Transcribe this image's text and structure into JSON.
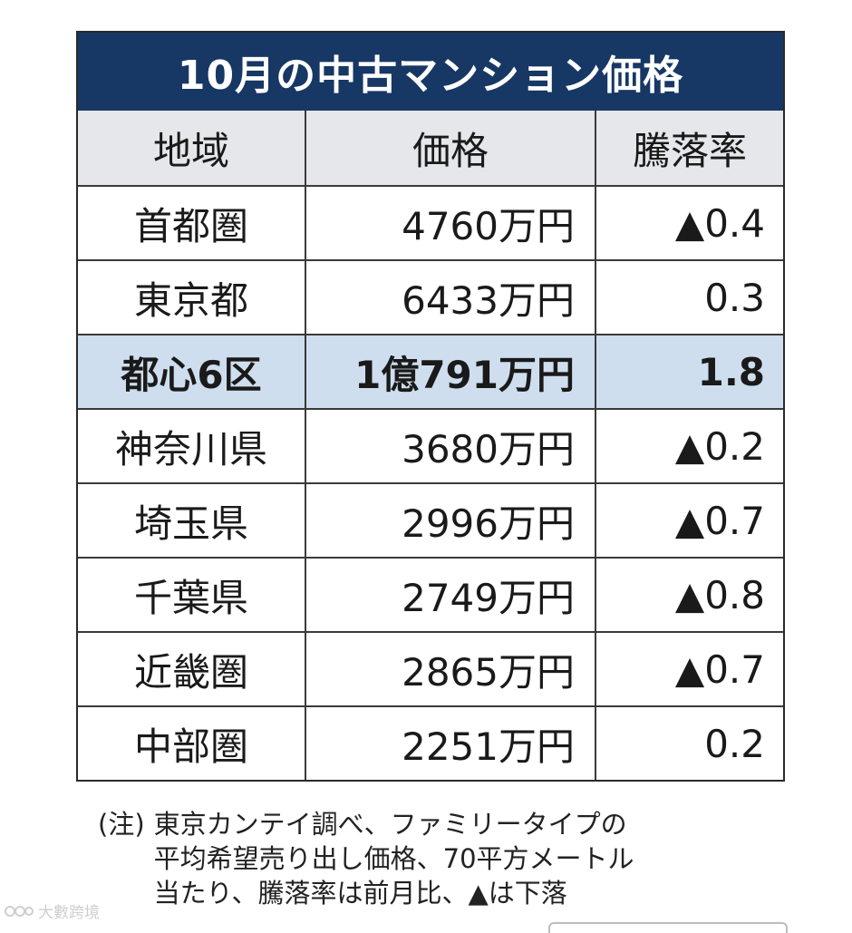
{
  "title": "10月の中古マンション価格",
  "headers": {
    "region": "地域",
    "price": "価格",
    "rate": "騰落率"
  },
  "rows": [
    {
      "region": "首都圏",
      "price": "4760万円",
      "rate": "▲0.4"
    },
    {
      "region": "東京都",
      "price": "6433万円",
      "rate": "0.3"
    },
    {
      "region": "都心6区",
      "price": "1億791万円",
      "rate": "1.8"
    },
    {
      "region": "神奈川県",
      "price": "3680万円",
      "rate": "▲0.2"
    },
    {
      "region": "埼玉県",
      "price": "2996万円",
      "rate": "▲0.7"
    },
    {
      "region": "千葉県",
      "price": "2749万円",
      "rate": "▲0.8"
    },
    {
      "region": "近畿圏",
      "price": "2865万円",
      "rate": "▲0.7"
    },
    {
      "region": "中部圏",
      "price": "2251万円",
      "rate": "0.2"
    }
  ],
  "note": {
    "tag": "(注)",
    "lines": [
      "東京カンテイ調べ、ファミリータイプの",
      "平均希望売り出し価格、70平方メートル",
      "当たり、騰落率は前月比、▲は下落"
    ]
  },
  "watermark": "大數跨境",
  "colors": {
    "title_bg": "#173765",
    "header_bg": "#e6e7ea",
    "highlight_bg": "#cfdeee"
  }
}
